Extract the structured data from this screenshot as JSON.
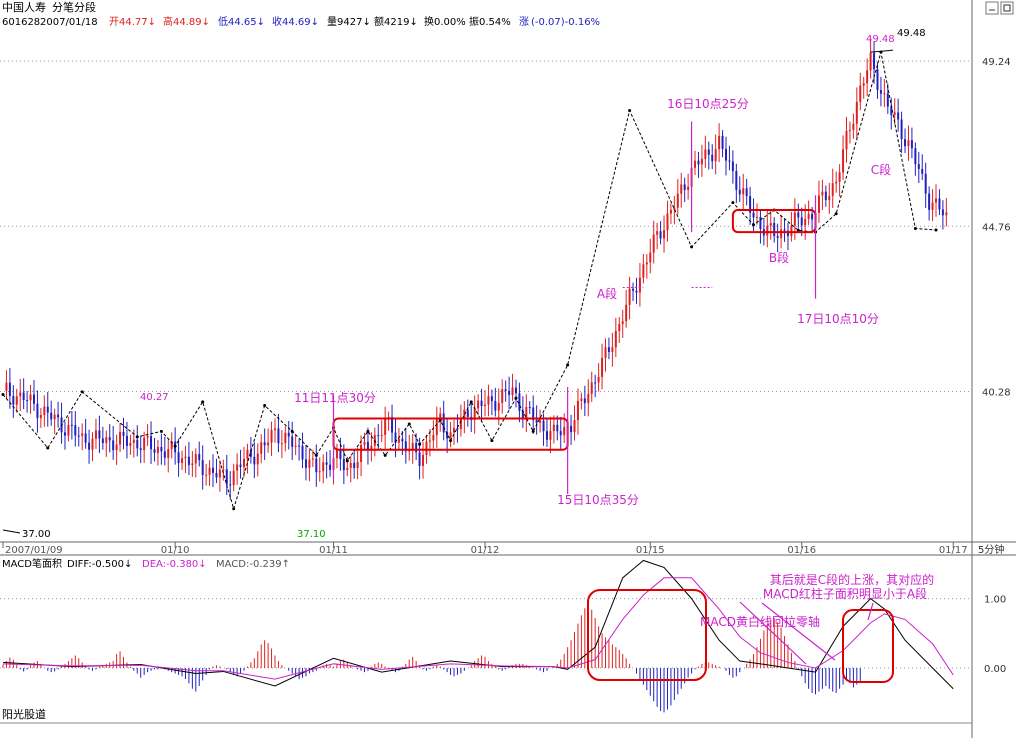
{
  "header": {
    "stock_name": "中国人寿",
    "view_name": "分笔分段",
    "code": "601628",
    "date": "2007/01/18",
    "open": "开44.77↓",
    "high": "高44.89↓",
    "low": "低44.65↓",
    "close": "收44.69↓",
    "volume": "量9427↓",
    "amount": "额4219↓",
    "turnover": "换0.00%",
    "amplitude": "振0.54%",
    "change_label": "涨",
    "change_value": "(-0.07)-0.16%"
  },
  "colors": {
    "up": "#e02020",
    "down": "#2020c0",
    "annotation": "#cc22cc",
    "box": "#e00000",
    "grid": "#9a9a9a",
    "diff_line": "#000000",
    "dea_line": "#cc22cc",
    "low_label": "#00aa00"
  },
  "chart_data": [
    {
      "type": "line",
      "title": "分笔分段",
      "x_labels": [
        "2007/01/09",
        "01/10",
        "01/11",
        "01/12",
        "01/15",
        "01/16",
        "01/17"
      ],
      "y_ticks": [
        "49.24",
        "44.76",
        "40.28"
      ],
      "ylim": [
        36.2,
        50.0
      ],
      "x_unit_label": "5分钟",
      "price_path": {
        "x": [
          0,
          6,
          23,
          39,
          46,
          50,
          65,
          70,
          76,
          79,
          82,
          87,
          91,
          96,
          100,
          106,
          111,
          114,
          119,
          121,
          127,
          130,
          136,
          142,
          148,
          151,
          157,
          160,
          165,
          174,
          183,
          190,
          196,
          200,
          208,
          213,
          218,
          224,
          231,
          235,
          242,
          249,
          252,
          257,
          263,
          269,
          274
        ],
        "y": [
          40.3,
          40.1,
          39.0,
          38.9,
          38.7,
          38.6,
          37.9,
          38.4,
          38.8,
          39.2,
          39.0,
          38.6,
          38.1,
          38.5,
          38.2,
          38.8,
          39.4,
          39.1,
          38.6,
          38.5,
          39.5,
          39.1,
          39.8,
          40.0,
          40.3,
          39.8,
          39.3,
          39.1,
          39.4,
          41.0,
          43.0,
          44.5,
          45.5,
          46.3,
          47.0,
          46.0,
          45.0,
          44.5,
          44.9,
          45.1,
          46.0,
          48.5,
          49.2,
          48.0,
          47.0,
          45.5,
          45.0
        ]
      },
      "pen_strokes": {
        "x": [
          0,
          13,
          23,
          39,
          46,
          50,
          58,
          67,
          76,
          84,
          91,
          96,
          100,
          106,
          111,
          118,
          121,
          127,
          130,
          136,
          142,
          149,
          154,
          164,
          182,
          200,
          212,
          218,
          224,
          231,
          236,
          242,
          255,
          265,
          271
        ],
        "y": [
          40.2,
          38.75,
          40.27,
          39.05,
          39.2,
          38.8,
          40.0,
          37.1,
          39.9,
          39.2,
          38.55,
          39.3,
          38.4,
          39.2,
          38.55,
          39.4,
          38.85,
          39.5,
          38.95,
          40.0,
          38.95,
          40.1,
          39.2,
          41.0,
          47.9,
          44.2,
          45.4,
          44.8,
          45.2,
          44.65,
          44.6,
          45.1,
          49.48,
          44.7,
          44.66
        ]
      },
      "marked_points": [
        {
          "label": "37.00",
          "value": 37.0,
          "x": 0
        },
        {
          "label": "40.27",
          "value": 40.27,
          "x": 39
        },
        {
          "label": "37.10",
          "value": 37.1,
          "x": 79
        },
        {
          "label": "49.48",
          "value": 49.48,
          "x": 249
        }
      ],
      "annotations": [
        {
          "text": "11日11点30分",
          "bar": 96
        },
        {
          "text": "15日10点35分",
          "bar": 164
        },
        {
          "text": "16日10点25分",
          "bar": 200
        },
        {
          "text": "17日10点10分",
          "bar": 236
        },
        {
          "text": "A段"
        },
        {
          "text": "B段"
        },
        {
          "text": "C段"
        }
      ],
      "boxes": [
        {
          "x_range": [
            96,
            164
          ],
          "y_range": [
            38.7,
            39.55
          ]
        },
        {
          "x_range": [
            212,
            236
          ],
          "y_range": [
            44.6,
            45.2
          ]
        }
      ]
    },
    {
      "type": "bar",
      "title": "MACD笔面积",
      "diff": "-0.500",
      "dea": "-0.380",
      "macd": "-0.239",
      "legend": [
        "DIFF:-0.500↓",
        "DEA:-0.380↓",
        "MACD:-0.239↑"
      ],
      "y_ticks": [
        "1.00",
        "0.00"
      ],
      "ylim": [
        -0.75,
        1.6
      ],
      "source": "阳光股道",
      "annotations": [
        "其后就是C段的上涨，其对应的",
        "MACD红柱子面积明显小于A段",
        "MACD黄白线回拉零轴"
      ],
      "macd_bars": [
        0.05,
        0.1,
        0.15,
        0.12,
        0.06,
        -0.02,
        -0.05,
        -0.02,
        0.04,
        0.08,
        0.1,
        0.06,
        0.0,
        -0.04,
        -0.06,
        -0.05,
        -0.02,
        0.02,
        0.06,
        0.1,
        0.14,
        0.18,
        0.14,
        0.08,
        0.02,
        -0.02,
        -0.04,
        -0.02,
        0.02,
        0.04,
        0.06,
        0.08,
        0.1,
        0.2,
        0.24,
        0.16,
        0.08,
        0.02,
        -0.04,
        -0.08,
        -0.14,
        -0.1,
        -0.06,
        -0.04,
        -0.02,
        -0.02,
        0.0,
        -0.02,
        -0.04,
        -0.06,
        -0.08,
        -0.1,
        -0.12,
        -0.16,
        -0.22,
        -0.3,
        -0.34,
        -0.26,
        -0.18,
        -0.1,
        -0.02,
        0.02,
        0.04,
        0.02,
        0.0,
        -0.02,
        -0.06,
        -0.1,
        -0.12,
        -0.08,
        -0.04,
        0.02,
        0.08,
        0.14,
        0.24,
        0.34,
        0.4,
        0.36,
        0.28,
        0.18,
        0.1,
        0.04,
        0.0,
        -0.04,
        -0.08,
        -0.12,
        -0.16,
        -0.14,
        -0.12,
        -0.08,
        -0.06,
        -0.04,
        0.0,
        0.04,
        0.06,
        0.04,
        0.02,
        0.06,
        0.1,
        0.12,
        0.08,
        0.04,
        0.0,
        -0.02,
        -0.04,
        -0.06,
        -0.04,
        0.02,
        0.06,
        0.08,
        0.06,
        0.02,
        -0.02,
        -0.04,
        -0.06,
        -0.04,
        0.02,
        0.06,
        0.12,
        0.16,
        0.1,
        0.04,
        -0.02,
        -0.04,
        -0.02,
        0.02,
        0.04,
        0.02,
        -0.02,
        -0.06,
        -0.1,
        -0.12,
        -0.1,
        -0.08,
        -0.04,
        0.0,
        0.04,
        0.1,
        0.14,
        0.18,
        0.16,
        0.1,
        0.06,
        0.02,
        -0.02,
        -0.04,
        -0.02,
        0.02,
        0.04,
        0.06,
        0.06,
        0.06,
        0.04,
        0.02,
        0.0,
        -0.02,
        -0.04,
        -0.06,
        -0.04,
        0.0,
        0.02,
        0.06,
        0.12,
        0.2,
        0.3,
        0.4,
        0.52,
        0.64,
        0.76,
        0.86,
        0.9,
        0.84,
        0.72,
        0.6,
        0.5,
        0.44,
        0.4,
        0.34,
        0.3,
        0.26,
        0.2,
        0.14,
        0.06,
        0.0,
        -0.08,
        -0.16,
        -0.24,
        -0.32,
        -0.4,
        -0.48,
        -0.56,
        -0.62,
        -0.64,
        -0.6,
        -0.54,
        -0.46,
        -0.38,
        -0.3,
        -0.22,
        -0.14,
        -0.08,
        -0.02,
        0.02,
        0.06,
        0.08,
        0.08,
        0.06,
        0.04,
        0.02,
        0.0,
        -0.04,
        -0.1,
        -0.14,
        -0.12,
        -0.06,
        0.0,
        0.06,
        0.12,
        0.2,
        0.3,
        0.42,
        0.54,
        0.64,
        0.7,
        0.72,
        0.66,
        0.58,
        0.46,
        0.34,
        0.22,
        0.1,
        -0.02,
        -0.12,
        -0.22,
        -0.3,
        -0.36,
        -0.38,
        -0.34,
        -0.3,
        -0.26,
        -0.3,
        -0.34,
        -0.36,
        -0.3,
        -0.24,
        -0.18,
        -0.22,
        -0.28,
        -0.24,
        -0.2
      ],
      "diff_line": {
        "x": [
          0,
          20,
          40,
          56,
          64,
          79,
          96,
          110,
          130,
          145,
          160,
          164,
          172,
          180,
          186,
          192,
          200,
          208,
          214,
          220,
          228,
          236,
          244,
          252,
          256,
          262,
          270,
          276
        ],
        "y": [
          0.08,
          0.02,
          0.05,
          -0.08,
          -0.05,
          -0.26,
          0.14,
          -0.06,
          0.1,
          0.02,
          0.02,
          -0.02,
          0.3,
          1.3,
          1.55,
          1.45,
          1.0,
          0.4,
          0.1,
          0.06,
          0.0,
          -0.06,
          0.6,
          1.0,
          0.85,
          0.4,
          0.0,
          -0.3
        ]
      },
      "dea_line": {
        "x": [
          0,
          20,
          40,
          56,
          64,
          79,
          96,
          110,
          130,
          145,
          160,
          164,
          172,
          180,
          186,
          192,
          200,
          208,
          214,
          220,
          228,
          236,
          244,
          252,
          256,
          262,
          270,
          276
        ],
        "y": [
          0.06,
          0.03,
          0.04,
          -0.04,
          -0.04,
          -0.16,
          0.06,
          -0.02,
          0.06,
          0.03,
          0.02,
          0.0,
          0.12,
          0.7,
          1.05,
          1.3,
          1.3,
          0.85,
          0.45,
          0.22,
          0.08,
          0.0,
          0.25,
          0.65,
          0.78,
          0.7,
          0.35,
          -0.1
        ]
      }
    }
  ]
}
